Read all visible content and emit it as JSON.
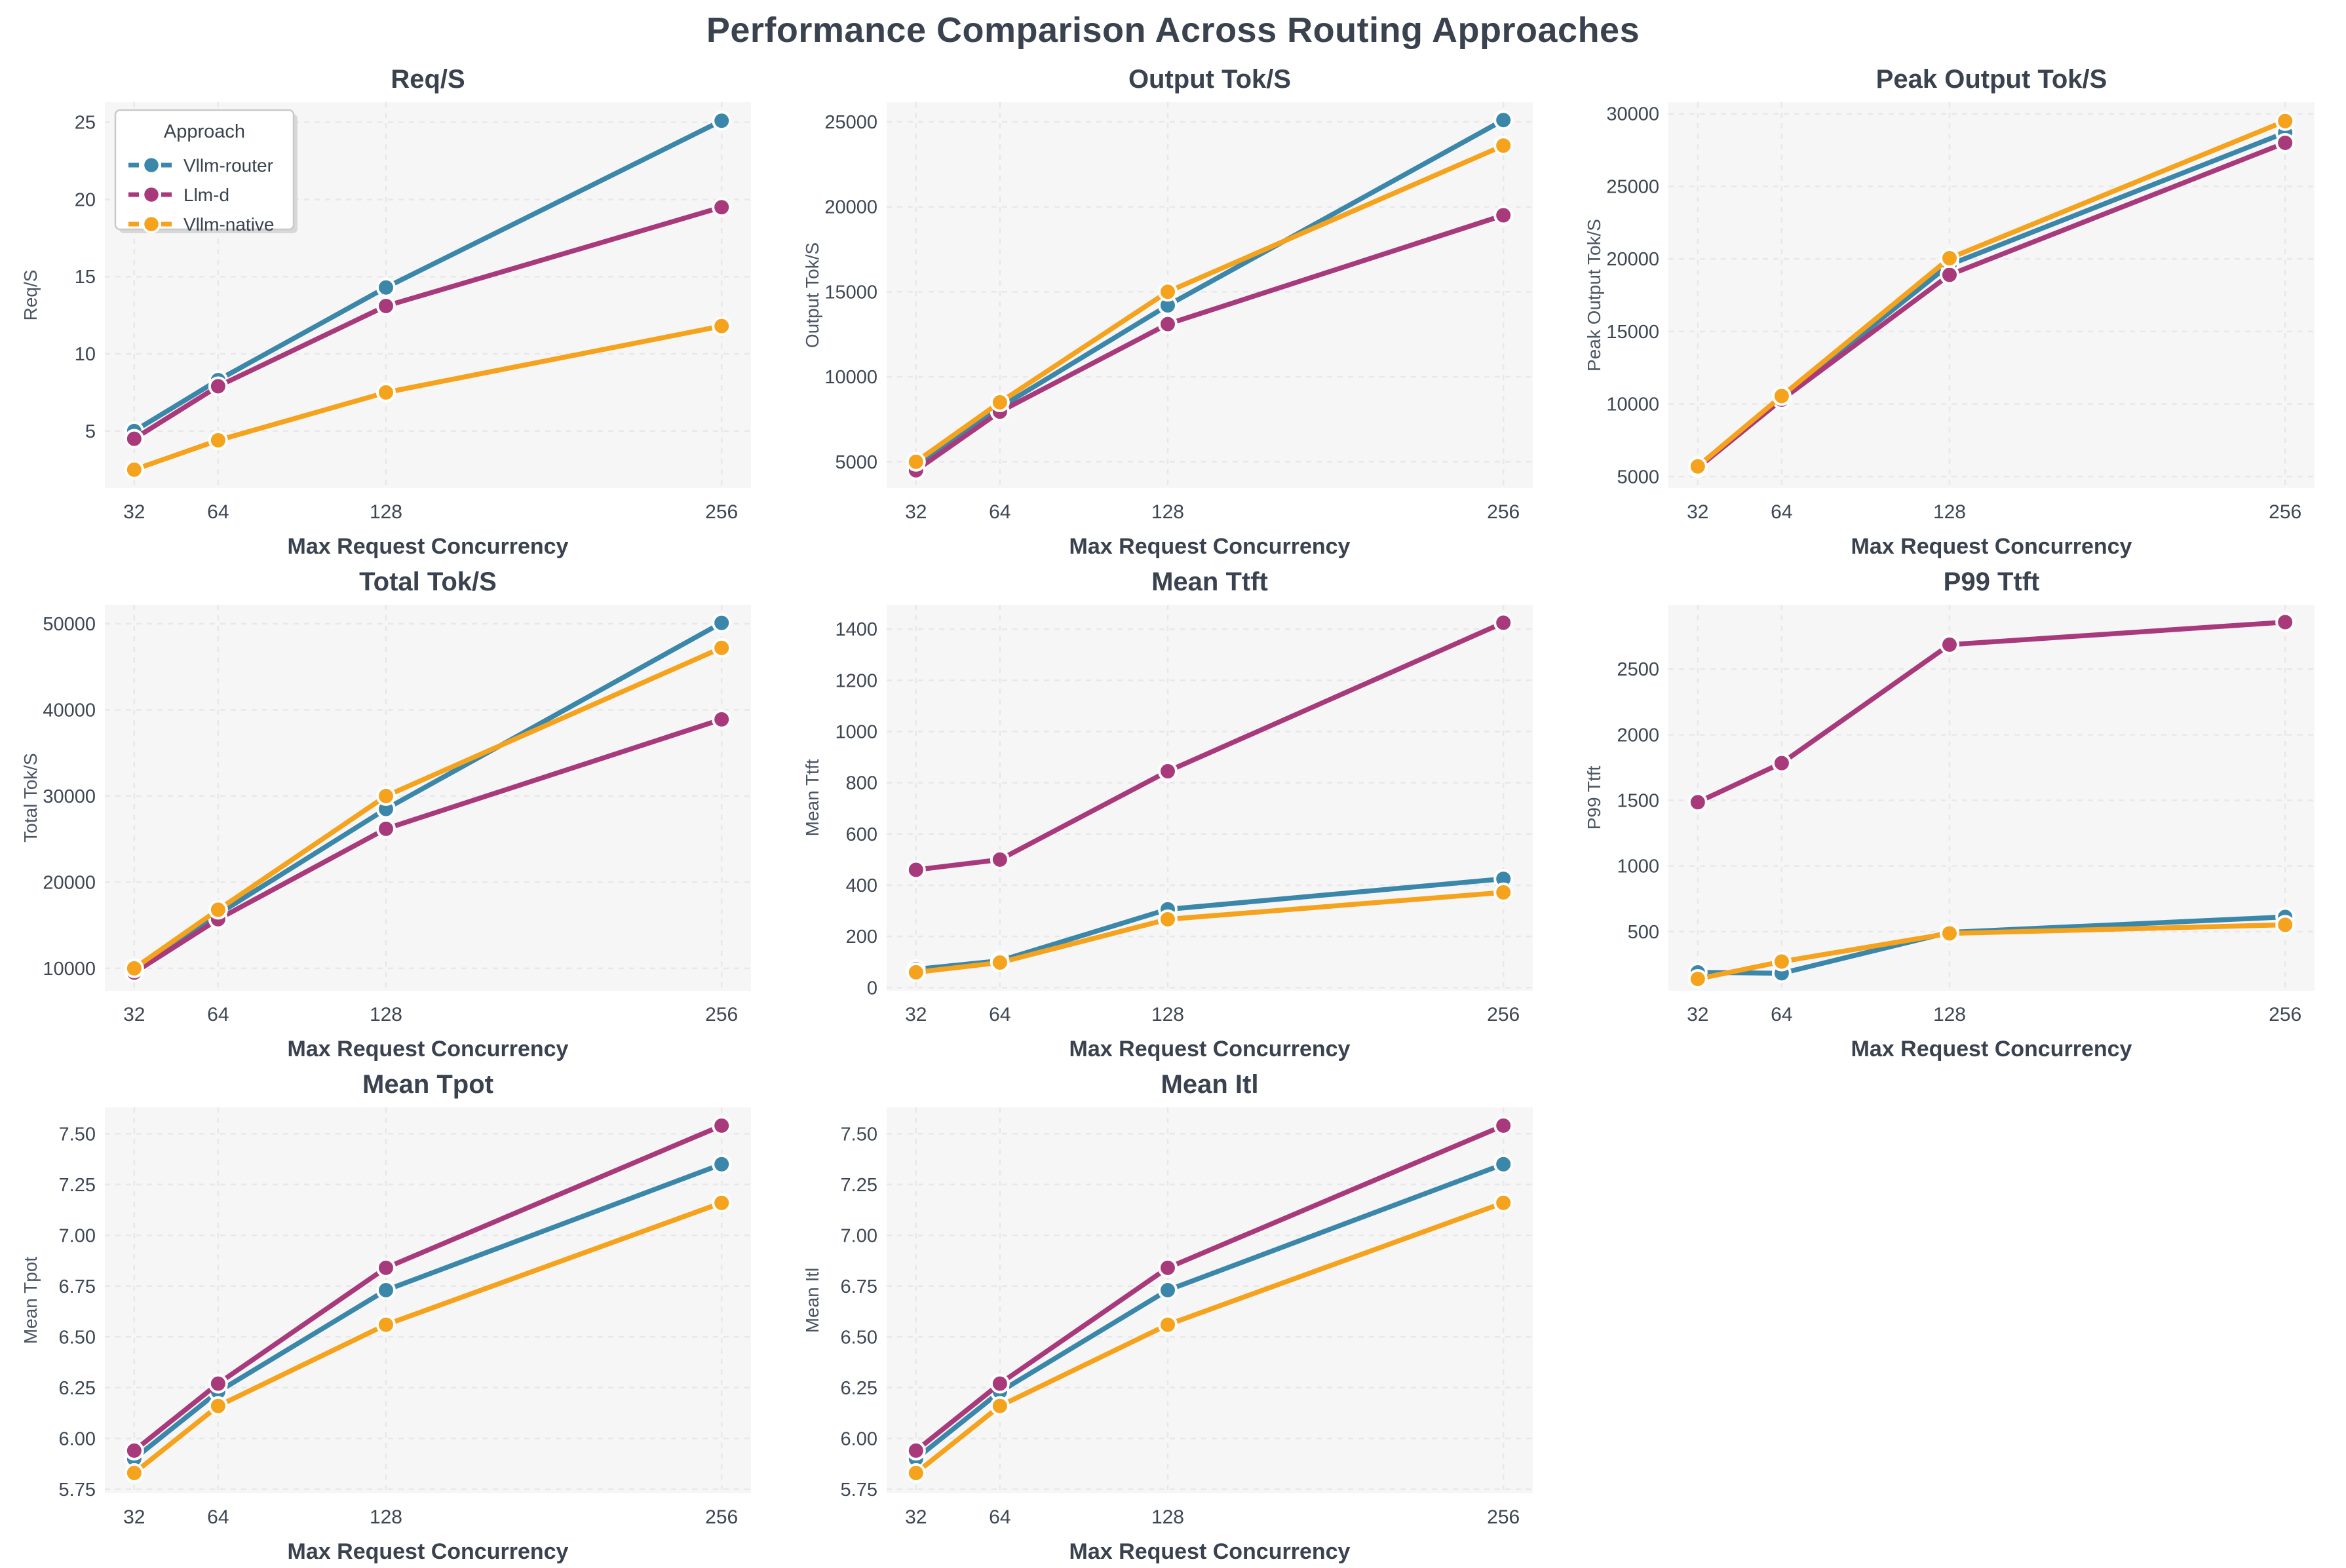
{
  "page_title": "Performance Comparison Across Routing Approaches",
  "x_axis": {
    "label": "Max Request Concurrency",
    "ticks": [
      32,
      64,
      128,
      256
    ],
    "tick_labels": [
      "32",
      "64",
      "128",
      "256"
    ]
  },
  "legend": {
    "title": "Approach"
  },
  "palette": {
    "Vllm-router": "#3b87aa",
    "Llm-d": "#a83a7c",
    "Vllm-native": "#f5a21c"
  },
  "style": {
    "plot_bg": "#f6f6f7",
    "grid_color": "#e8e8ea",
    "title_color": "#39424e",
    "tick_color": "#3d4653",
    "label_color": "#4b5563",
    "legend_bg": "#ffffff",
    "legend_border": "#c9c9c9",
    "legend_shadow": "#d8d8d8",
    "marker_edge": "#ffffff"
  },
  "chart_data": [
    {
      "type": "line",
      "title": "Req/S",
      "ylabel": "Req/S",
      "xlabel": "Max Request Concurrency",
      "x": [
        32,
        64,
        128,
        256
      ],
      "ylim": [
        1.3,
        26.3
      ],
      "yticks": [
        5,
        10,
        15,
        20,
        25
      ],
      "ytick_labels": [
        "5",
        "10",
        "15",
        "20",
        "25"
      ],
      "legend": true,
      "series": [
        {
          "name": "Vllm-router",
          "values": [
            5.0,
            8.3,
            14.3,
            25.1
          ]
        },
        {
          "name": "Llm-d",
          "values": [
            4.5,
            7.9,
            13.1,
            19.5
          ]
        },
        {
          "name": "Vllm-native",
          "values": [
            2.5,
            4.4,
            7.5,
            11.8
          ]
        }
      ]
    },
    {
      "type": "line",
      "title": "Output Tok/S",
      "ylabel": "Output Tok/S",
      "xlabel": "Max Request Concurrency",
      "x": [
        32,
        64,
        128,
        256
      ],
      "ylim": [
        3450,
        26150
      ],
      "yticks": [
        5000,
        10000,
        15000,
        20000,
        25000
      ],
      "ytick_labels": [
        "5000",
        "10000",
        "15000",
        "20000",
        "25000"
      ],
      "legend": false,
      "series": [
        {
          "name": "Vllm-router",
          "values": [
            4800,
            8200,
            14200,
            25100
          ]
        },
        {
          "name": "Llm-d",
          "values": [
            4500,
            7950,
            13100,
            19500
          ]
        },
        {
          "name": "Vllm-native",
          "values": [
            5000,
            8500,
            15000,
            23600
          ]
        }
      ]
    },
    {
      "type": "line",
      "title": "Peak Output Tok/S",
      "ylabel": "Peak Output Tok/S",
      "xlabel": "Max Request Concurrency",
      "x": [
        32,
        64,
        128,
        256
      ],
      "ylim": [
        4200,
        30800
      ],
      "yticks": [
        5000,
        10000,
        15000,
        20000,
        25000,
        30000
      ],
      "ytick_labels": [
        "5000",
        "10000",
        "15000",
        "20000",
        "25000",
        "30000"
      ],
      "legend": false,
      "series": [
        {
          "name": "Vllm-router",
          "values": [
            5700,
            10400,
            19600,
            28700
          ]
        },
        {
          "name": "Llm-d",
          "values": [
            5600,
            10300,
            18900,
            28000
          ]
        },
        {
          "name": "Vllm-native",
          "values": [
            5700,
            10550,
            20050,
            29500
          ]
        }
      ]
    },
    {
      "type": "line",
      "title": "Total Tok/S",
      "ylabel": "Total Tok/S",
      "xlabel": "Max Request Concurrency",
      "x": [
        32,
        64,
        128,
        256
      ],
      "ylim": [
        7400,
        52200
      ],
      "yticks": [
        10000,
        20000,
        30000,
        40000,
        50000
      ],
      "ytick_labels": [
        "10000",
        "20000",
        "30000",
        "40000",
        "50000"
      ],
      "legend": false,
      "series": [
        {
          "name": "Vllm-router",
          "values": [
            9900,
            16300,
            28500,
            50100
          ]
        },
        {
          "name": "Llm-d",
          "values": [
            9500,
            15700,
            26200,
            38900
          ]
        },
        {
          "name": "Vllm-native",
          "values": [
            10000,
            16800,
            30000,
            47200
          ]
        }
      ]
    },
    {
      "type": "line",
      "title": "Mean Ttft",
      "ylabel": "Mean Ttft",
      "xlabel": "Max Request Concurrency",
      "x": [
        32,
        64,
        128,
        256
      ],
      "ylim": [
        -12,
        1495
      ],
      "yticks": [
        0,
        200,
        400,
        600,
        800,
        1000,
        1200,
        1400
      ],
      "ytick_labels": [
        "0",
        "200",
        "400",
        "600",
        "800",
        "1000",
        "1200",
        "1400"
      ],
      "legend": false,
      "series": [
        {
          "name": "Vllm-router",
          "values": [
            72,
            105,
            306,
            425
          ]
        },
        {
          "name": "Llm-d",
          "values": [
            460,
            500,
            845,
            1425
          ]
        },
        {
          "name": "Vllm-native",
          "values": [
            60,
            98,
            267,
            372
          ]
        }
      ]
    },
    {
      "type": "line",
      "title": "P99 Ttft",
      "ylabel": "P99 Ttft",
      "xlabel": "Max Request Concurrency",
      "x": [
        32,
        64,
        128,
        256
      ],
      "ylim": [
        50,
        2990
      ],
      "yticks": [
        500,
        1000,
        1500,
        2000,
        2500
      ],
      "ytick_labels": [
        "500",
        "1000",
        "1500",
        "2000",
        "2500"
      ],
      "legend": false,
      "series": [
        {
          "name": "Vllm-router",
          "values": [
            190,
            183,
            495,
            612
          ]
        },
        {
          "name": "Llm-d",
          "values": [
            1486,
            1784,
            2686,
            2858
          ]
        },
        {
          "name": "Vllm-native",
          "values": [
            140,
            272,
            487,
            552
          ]
        }
      ]
    },
    {
      "type": "line",
      "title": "Mean Tpot",
      "ylabel": "Mean Tpot",
      "xlabel": "Max Request Concurrency",
      "x": [
        32,
        64,
        128,
        256
      ],
      "ylim": [
        5.73,
        7.63
      ],
      "yticks": [
        5.75,
        6.0,
        6.25,
        6.5,
        6.75,
        7.0,
        7.25,
        7.5
      ],
      "ytick_labels": [
        "5.75",
        "6.00",
        "6.25",
        "6.50",
        "6.75",
        "7.00",
        "7.25",
        "7.50"
      ],
      "legend": false,
      "series": [
        {
          "name": "Vllm-router",
          "values": [
            5.9,
            6.23,
            6.73,
            7.35
          ]
        },
        {
          "name": "Llm-d",
          "values": [
            5.94,
            6.27,
            6.84,
            7.54
          ]
        },
        {
          "name": "Vllm-native",
          "values": [
            5.83,
            6.16,
            6.56,
            7.16
          ]
        }
      ]
    },
    {
      "type": "line",
      "title": "Mean Itl",
      "ylabel": "Mean Itl",
      "xlabel": "Max Request Concurrency",
      "x": [
        32,
        64,
        128,
        256
      ],
      "ylim": [
        5.73,
        7.63
      ],
      "yticks": [
        5.75,
        6.0,
        6.25,
        6.5,
        6.75,
        7.0,
        7.25,
        7.5
      ],
      "ytick_labels": [
        "5.75",
        "6.00",
        "6.25",
        "6.50",
        "6.75",
        "7.00",
        "7.25",
        "7.50"
      ],
      "legend": false,
      "series": [
        {
          "name": "Vllm-router",
          "values": [
            5.9,
            6.23,
            6.73,
            7.35
          ]
        },
        {
          "name": "Llm-d",
          "values": [
            5.94,
            6.27,
            6.84,
            7.54
          ]
        },
        {
          "name": "Vllm-native",
          "values": [
            5.83,
            6.16,
            6.56,
            7.16
          ]
        }
      ]
    }
  ]
}
